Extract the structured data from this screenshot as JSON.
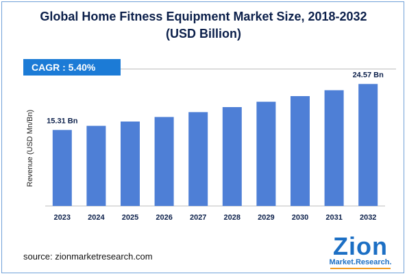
{
  "title_line1": "Global Home Fitness Equipment Market Size, 2018-2032",
  "title_line2": "(USD Billion)",
  "cagr_label": "CAGR : 5.40%",
  "source_text": "source: zionmarketresearch.com",
  "logo": {
    "wordmark": "Zion",
    "subtitle": "Market.Research."
  },
  "colors": {
    "bar": "#4e7fd6",
    "cagr_box": "#1c7bd6",
    "title": "#0b1f4a",
    "axis_text": "#0b1f4a"
  },
  "chart_data": {
    "type": "bar",
    "title": "Global Home Fitness Equipment Market Size, 2018-2032 (USD Billion)",
    "xlabel": "",
    "ylabel": "Revenue (USD Mn/Bn)",
    "categories": [
      "2023",
      "2024",
      "2025",
      "2026",
      "2027",
      "2028",
      "2029",
      "2030",
      "2031",
      "2032"
    ],
    "values": [
      15.31,
      16.14,
      17.01,
      17.93,
      18.9,
      19.92,
      20.99,
      22.13,
      23.32,
      24.57
    ],
    "data_labels": [
      {
        "index": 0,
        "text": "15.31 Bn"
      },
      {
        "index": 9,
        "text": "24.57 Bn"
      }
    ],
    "ylim": [
      0,
      26
    ],
    "grid": false,
    "legend": "none"
  }
}
